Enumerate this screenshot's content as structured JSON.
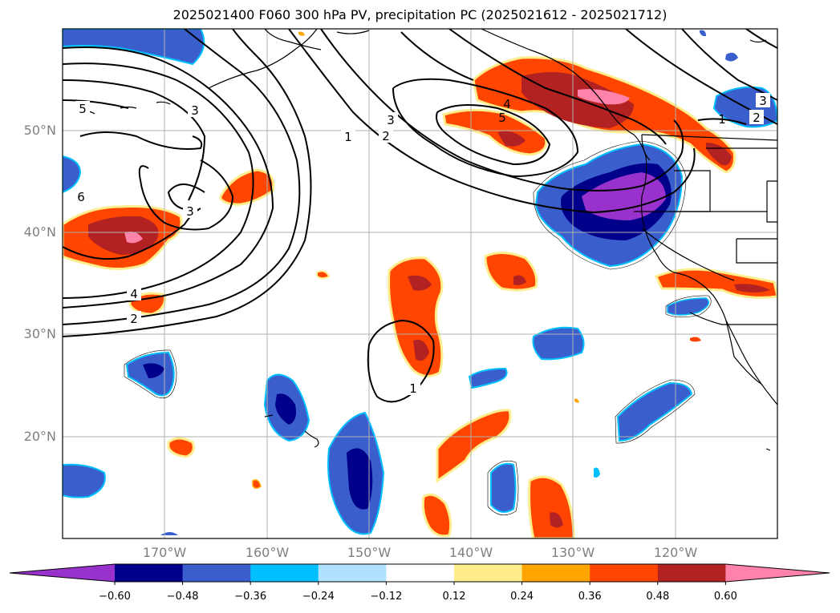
{
  "title": "2025021400 F060 300 hPa PV, precipitation PC (2025021612 - 2025021712)",
  "lat_labels": [
    "50°N",
    "40°N",
    "30°N",
    "20°N"
  ],
  "lon_labels": [
    "170°W",
    "160°W",
    "150°W",
    "140°W",
    "130°W",
    "120°W"
  ],
  "contour_labels": [
    "5",
    "3",
    "1",
    "2",
    "3",
    "4",
    "5",
    "6",
    "3",
    "4",
    "2",
    "1",
    "3",
    "2",
    "1"
  ],
  "colorbar": {
    "ticks": [
      "−0.60",
      "−0.48",
      "−0.36",
      "−0.24",
      "−0.12",
      "0.12",
      "0.24",
      "0.36",
      "0.48",
      "0.60"
    ],
    "colors": [
      "#9932cc",
      "#00008b",
      "#3a5fcd",
      "#00bfff",
      "#b0e2ff",
      "#ffffff",
      "#ffec8b",
      "#ffa500",
      "#ff4500",
      "#b22222",
      "#ff82ab"
    ]
  },
  "colors": {
    "pos_light": "#ffec8b",
    "pos_orange": "#ffa500",
    "pos_red": "#ff4500",
    "pos_dark": "#b22222",
    "pos_pink": "#ff82ab",
    "neg_light": "#b0e2ff",
    "neg_cyan": "#00bfff",
    "neg_blue": "#3a5fcd",
    "neg_navy": "#00008b",
    "neg_purple": "#9932cc"
  }
}
